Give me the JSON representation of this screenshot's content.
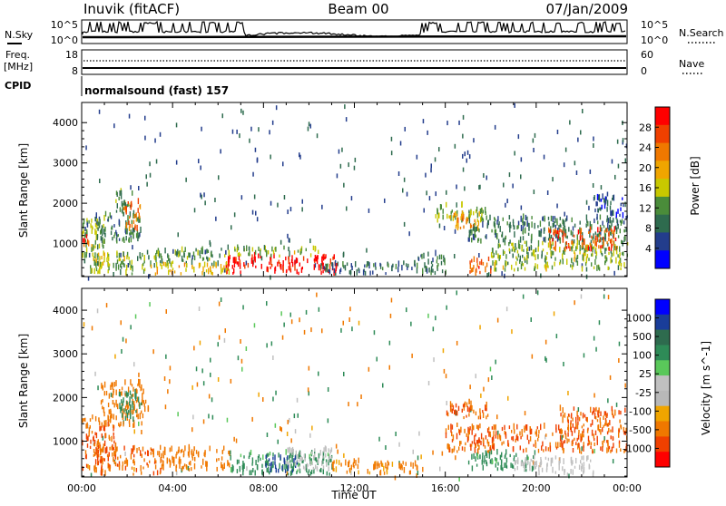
{
  "header": {
    "station": "Inuvik (fitACF)",
    "beam": "Beam 00",
    "date": "07/Jan/2009"
  },
  "status_panel": {
    "nsky_label": "N.Sky",
    "nsky_ticks": [
      "10^5",
      "10^0"
    ],
    "nsearch_ticks": [
      "10^5",
      "10^0"
    ],
    "nsearch_label": "N.Search",
    "freq_label_line1": "Freq.",
    "freq_label_line2": "[MHz]",
    "freq_ticks": [
      "18",
      "8"
    ],
    "nave_ticks": [
      "60",
      "0"
    ],
    "nave_label": "Nave",
    "cpid_label": "CPID",
    "cpid_value": "normalsound (fast) 157"
  },
  "colors": {
    "power": [
      "#0000ff",
      "#233d8c",
      "#2e6b4e",
      "#4a8c3a",
      "#c8c800",
      "#f0a500",
      "#f07800",
      "#f04000",
      "#ff0000"
    ],
    "velocity": [
      "#0000ff",
      "#1a3d99",
      "#2e6b4e",
      "#2e8b57",
      "#5ac85a",
      "#c0c0c0",
      "#b8b8b8",
      "#f0a500",
      "#f07800",
      "#f04000",
      "#ff0000"
    ]
  },
  "chart_data": [
    {
      "type": "heatmap",
      "name": "power",
      "ylabel": "Slant Range [km]",
      "yticks": [
        "1000",
        "2000",
        "3000",
        "4000"
      ],
      "ylim": [
        180,
        4500
      ],
      "xlim": [
        0,
        24
      ],
      "colorbar_label": "Power [dB]",
      "colorbar_ticks": [
        "28",
        "24",
        "20",
        "16",
        "12",
        "8",
        "4"
      ],
      "colorbar_range": [
        0,
        32
      ],
      "patches": [
        {
          "t0": 0.0,
          "t1": 1.0,
          "r0": 600,
          "r1": 1600,
          "v": 14
        },
        {
          "t0": 0.0,
          "t1": 0.3,
          "r0": 800,
          "r1": 1200,
          "v": 26
        },
        {
          "t0": 0.3,
          "t1": 1.0,
          "r0": 200,
          "r1": 700,
          "v": 16
        },
        {
          "t0": 0.5,
          "t1": 2.6,
          "r0": 1000,
          "r1": 1700,
          "v": 10
        },
        {
          "t0": 1.4,
          "t1": 2.2,
          "r0": 1700,
          "r1": 2300,
          "v": 12
        },
        {
          "t0": 1.8,
          "t1": 2.6,
          "r0": 1300,
          "r1": 2000,
          "v": 24
        },
        {
          "t0": 0.5,
          "t1": 2.8,
          "r0": 200,
          "r1": 700,
          "v": 14
        },
        {
          "t0": 3.0,
          "t1": 6.0,
          "r0": 400,
          "r1": 800,
          "v": 12
        },
        {
          "t0": 3.0,
          "t1": 6.5,
          "r0": 200,
          "r1": 450,
          "v": 18
        },
        {
          "t0": 6.3,
          "t1": 11.3,
          "r0": 200,
          "r1": 650,
          "v": 30
        },
        {
          "t0": 6.0,
          "t1": 10.5,
          "r0": 650,
          "r1": 850,
          "v": 14
        },
        {
          "t0": 10.5,
          "t1": 14.5,
          "r0": 200,
          "r1": 450,
          "v": 8
        },
        {
          "t0": 14.5,
          "t1": 16.0,
          "r0": 200,
          "r1": 700,
          "v": 10
        },
        {
          "t0": 15.5,
          "t1": 17.8,
          "r0": 1500,
          "r1": 1900,
          "v": 14
        },
        {
          "t0": 16.3,
          "t1": 17.5,
          "r0": 1300,
          "r1": 1700,
          "v": 22
        },
        {
          "t0": 17.0,
          "t1": 18.0,
          "r0": 200,
          "r1": 600,
          "v": 26
        },
        {
          "t0": 18.0,
          "t1": 24.0,
          "r0": 300,
          "r1": 1000,
          "v": 14
        },
        {
          "t0": 17.0,
          "t1": 24.0,
          "r0": 1000,
          "r1": 1600,
          "v": 10
        },
        {
          "t0": 20.5,
          "t1": 23.5,
          "r0": 800,
          "r1": 1300,
          "v": 26
        },
        {
          "t0": 22.5,
          "t1": 24.0,
          "r0": 1500,
          "r1": 2100,
          "v": 6
        }
      ]
    },
    {
      "type": "heatmap",
      "name": "velocity",
      "ylabel": "Slant Range [km]",
      "yticks": [
        "1000",
        "2000",
        "3000",
        "4000"
      ],
      "ylim": [
        180,
        4500
      ],
      "xlim": [
        0,
        24
      ],
      "xticks": [
        "00:00",
        "04:00",
        "08:00",
        "12:00",
        "16:00",
        "20:00",
        "00:00"
      ],
      "xlabel": "Time UT",
      "colorbar_label": "Velocity [m s^-1]",
      "colorbar_ticks": [
        "1000",
        "500",
        "100",
        "25",
        "-25",
        "-100",
        "-500",
        "-1000"
      ],
      "patches": [
        {
          "t0": 0.0,
          "t1": 1.5,
          "r0": 300,
          "r1": 1500,
          "v": -300
        },
        {
          "t0": 0.8,
          "t1": 2.8,
          "r0": 1300,
          "r1": 2300,
          "v": -200
        },
        {
          "t0": 1.6,
          "t1": 2.6,
          "r0": 1400,
          "r1": 2100,
          "v": 150
        },
        {
          "t0": 0.5,
          "t1": 3.5,
          "r0": 200,
          "r1": 800,
          "v": -250
        },
        {
          "t0": 3.5,
          "t1": 6.5,
          "r0": 300,
          "r1": 800,
          "v": -200
        },
        {
          "t0": 6.5,
          "t1": 11.0,
          "r0": 200,
          "r1": 700,
          "v": 120
        },
        {
          "t0": 8.0,
          "t1": 9.5,
          "r0": 250,
          "r1": 600,
          "v": 400
        },
        {
          "t0": 9.0,
          "t1": 11.0,
          "r0": 300,
          "r1": 800,
          "v": 0
        },
        {
          "t0": 11.0,
          "t1": 15.0,
          "r0": 200,
          "r1": 500,
          "v": -100
        },
        {
          "t0": 16.0,
          "t1": 18.0,
          "r0": 1500,
          "r1": 1900,
          "v": -250
        },
        {
          "t0": 16.0,
          "t1": 22.0,
          "r0": 700,
          "r1": 1300,
          "v": -300
        },
        {
          "t0": 17.0,
          "t1": 20.0,
          "r0": 300,
          "r1": 700,
          "v": 120
        },
        {
          "t0": 19.0,
          "t1": 22.5,
          "r0": 200,
          "r1": 600,
          "v": 0
        },
        {
          "t0": 21.0,
          "t1": 24.0,
          "r0": 700,
          "r1": 1700,
          "v": -300
        }
      ]
    }
  ]
}
